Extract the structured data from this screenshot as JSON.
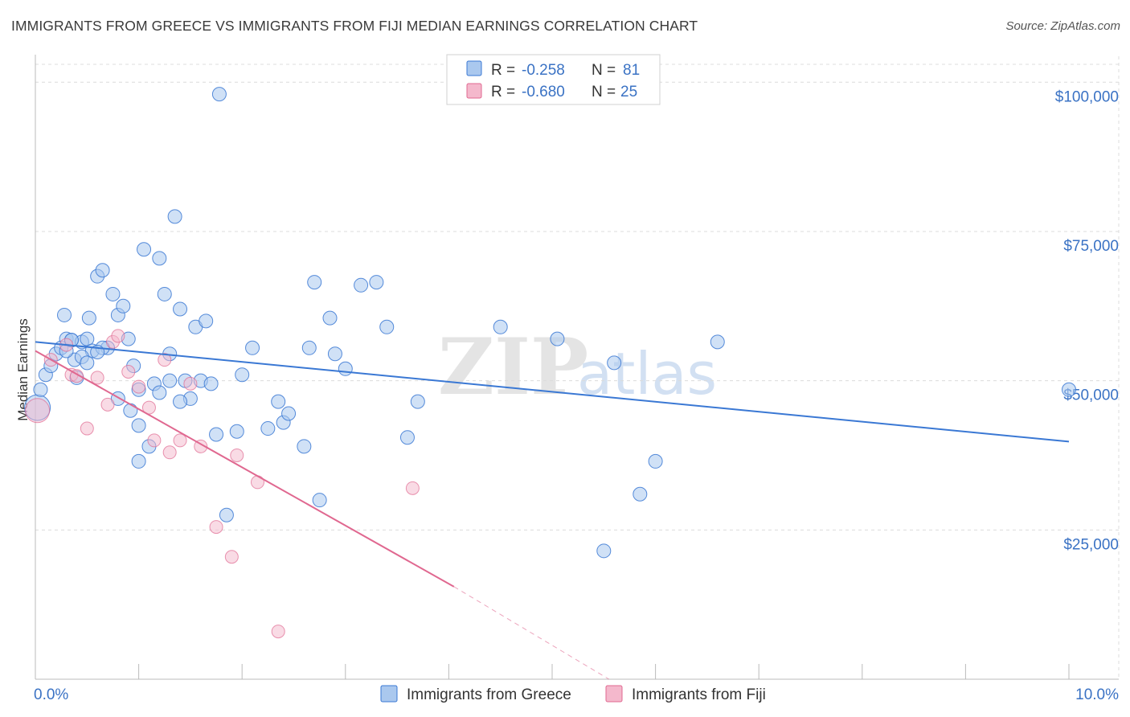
{
  "title": "IMMIGRANTS FROM GREECE VS IMMIGRANTS FROM FIJI MEDIAN EARNINGS CORRELATION CHART",
  "source": "Source: ZipAtlas.com",
  "watermark": {
    "part1": "ZIP",
    "part2": "atlas"
  },
  "colors": {
    "greece": "#3a78d4",
    "greece_fill": "#aac8ee",
    "fiji": "#e06890",
    "fiji_fill": "#f4b8cc",
    "axis_text": "#3a72c4",
    "grid": "#dcdcdc"
  },
  "legend_box": {
    "rows": [
      {
        "r_label": "R =",
        "r_value": "-0.258",
        "n_label": "N =",
        "n_value": "81"
      },
      {
        "r_label": "R =",
        "r_value": "-0.680",
        "n_label": "N =",
        "n_value": "25"
      }
    ]
  },
  "bottom_legend": [
    "Immigrants from Greece",
    "Immigrants from Fiji"
  ],
  "chart_data": {
    "type": "scatter",
    "title": "IMMIGRANTS FROM GREECE VS IMMIGRANTS FROM FIJI MEDIAN EARNINGS CORRELATION CHART",
    "xlabel": "",
    "ylabel": "Median Earnings",
    "xlim": [
      0,
      10
    ],
    "ylim": [
      0,
      103000
    ],
    "x_tick_labels": [
      "0.0%",
      "10.0%"
    ],
    "y_ticks": [
      25000,
      50000,
      75000,
      100000
    ],
    "y_tick_labels": [
      "$25,000",
      "$50,000",
      "$75,000",
      "$100,000"
    ],
    "series": [
      {
        "name": "Immigrants from Greece",
        "R": -0.258,
        "N": 81,
        "trend": {
          "x0": 0.0,
          "y0": 56500,
          "x1": 10.0,
          "y1": 39800
        },
        "points": [
          [
            0.02,
            45500
          ],
          [
            0.05,
            48500
          ],
          [
            0.1,
            51000
          ],
          [
            0.15,
            52500
          ],
          [
            0.2,
            54500
          ],
          [
            0.25,
            55500
          ],
          [
            0.28,
            61000
          ],
          [
            0.3,
            57000
          ],
          [
            0.35,
            56800
          ],
          [
            0.38,
            53500
          ],
          [
            0.4,
            50500
          ],
          [
            0.45,
            56500
          ],
          [
            0.5,
            57000
          ],
          [
            0.52,
            60500
          ],
          [
            0.55,
            55000
          ],
          [
            0.6,
            67500
          ],
          [
            0.65,
            68500
          ],
          [
            0.7,
            55500
          ],
          [
            0.75,
            64500
          ],
          [
            0.8,
            61000
          ],
          [
            0.85,
            62500
          ],
          [
            0.9,
            57000
          ],
          [
            0.92,
            45000
          ],
          [
            0.95,
            52500
          ],
          [
            1.0,
            48500
          ],
          [
            1.05,
            72000
          ],
          [
            1.1,
            39000
          ],
          [
            1.15,
            49500
          ],
          [
            1.2,
            70500
          ],
          [
            1.25,
            64500
          ],
          [
            1.3,
            54500
          ],
          [
            1.35,
            77500
          ],
          [
            1.4,
            62000
          ],
          [
            1.45,
            50000
          ],
          [
            1.5,
            47000
          ],
          [
            1.55,
            59000
          ],
          [
            1.6,
            50000
          ],
          [
            1.65,
            60000
          ],
          [
            1.7,
            49500
          ],
          [
            1.75,
            41000
          ],
          [
            1.78,
            98000
          ],
          [
            1.85,
            27500
          ],
          [
            2.0,
            51000
          ],
          [
            2.1,
            55500
          ],
          [
            2.35,
            46500
          ],
          [
            2.4,
            43000
          ],
          [
            2.45,
            44500
          ],
          [
            2.6,
            39000
          ],
          [
            2.65,
            55500
          ],
          [
            2.7,
            66500
          ],
          [
            2.75,
            30000
          ],
          [
            2.85,
            60500
          ],
          [
            2.9,
            54500
          ],
          [
            3.0,
            52000
          ],
          [
            3.15,
            66000
          ],
          [
            3.3,
            66500
          ],
          [
            3.4,
            59000
          ],
          [
            3.6,
            40500
          ],
          [
            3.7,
            46500
          ],
          [
            4.5,
            59000
          ],
          [
            5.05,
            57000
          ],
          [
            5.5,
            21500
          ],
          [
            5.6,
            53000
          ],
          [
            5.85,
            31000
          ],
          [
            6.0,
            36500
          ],
          [
            6.6,
            56500
          ],
          [
            10.0,
            48500
          ],
          [
            0.8,
            47000
          ],
          [
            1.0,
            36500
          ],
          [
            1.2,
            48000
          ],
          [
            0.3,
            55000
          ],
          [
            0.45,
            54000
          ],
          [
            1.95,
            41500
          ],
          [
            0.65,
            55500
          ],
          [
            1.3,
            50000
          ],
          [
            0.5,
            53000
          ],
          [
            1.4,
            46500
          ],
          [
            0.35,
            56800
          ],
          [
            0.6,
            54800
          ],
          [
            1.0,
            42500
          ],
          [
            2.25,
            42000
          ]
        ]
      },
      {
        "name": "Immigrants from Fiji",
        "R": -0.68,
        "N": 25,
        "trend": {
          "x0": 0.0,
          "y0": 55000,
          "x1": 4.05,
          "y1": 15500,
          "dash_x1": 5.55,
          "dash_y1": 0
        },
        "points": [
          [
            0.02,
            45000
          ],
          [
            0.15,
            53500
          ],
          [
            0.3,
            56000
          ],
          [
            0.35,
            51000
          ],
          [
            0.4,
            50800
          ],
          [
            0.5,
            42000
          ],
          [
            0.6,
            50500
          ],
          [
            0.7,
            46000
          ],
          [
            0.75,
            56500
          ],
          [
            0.8,
            57500
          ],
          [
            0.9,
            51500
          ],
          [
            1.0,
            49000
          ],
          [
            1.1,
            45500
          ],
          [
            1.15,
            40000
          ],
          [
            1.25,
            53500
          ],
          [
            1.3,
            38000
          ],
          [
            1.4,
            40000
          ],
          [
            1.5,
            49500
          ],
          [
            1.75,
            25500
          ],
          [
            1.9,
            20500
          ],
          [
            1.95,
            37500
          ],
          [
            2.15,
            33000
          ],
          [
            2.35,
            8000
          ],
          [
            3.65,
            32000
          ],
          [
            1.6,
            39000
          ]
        ]
      }
    ]
  }
}
